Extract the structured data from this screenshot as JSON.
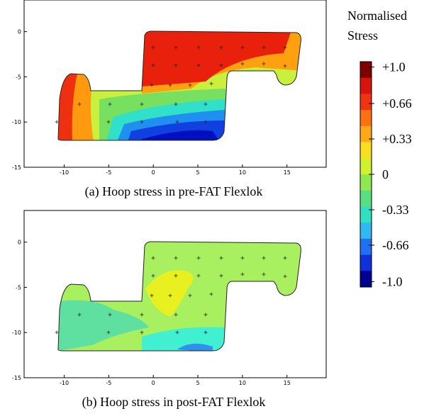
{
  "panels": [
    {
      "caption": "(a)  Hoop stress in pre-FAT Flexlok",
      "xlim": [
        -14.5,
        19.4
      ],
      "ylim": [
        -15,
        3.5
      ],
      "xticks": [
        -10,
        -5,
        0,
        5,
        10,
        15
      ],
      "yticks": [
        0,
        -5,
        -10,
        -15
      ]
    },
    {
      "caption": "(b)  Hoop stress in post-FAT Flexlok",
      "xlim": [
        -14.5,
        19.4
      ],
      "ylim": [
        -15,
        3.5
      ],
      "xticks": [
        -10,
        -5,
        0,
        5,
        10,
        15
      ],
      "yticks": [
        0,
        -5,
        -10,
        -15
      ]
    }
  ],
  "colorbar": {
    "title": [
      "Normalised",
      "Stress"
    ],
    "lim": [
      -1.05,
      1.05
    ],
    "ticks": [
      {
        "value": 1.0,
        "label": "+1.0"
      },
      {
        "value": 0.66,
        "label": "+0.66"
      },
      {
        "value": 0.33,
        "label": "+0.33"
      },
      0,
      {
        "value": -0.33,
        "label": "-0.33"
      },
      {
        "value": -0.66,
        "label": "-0.66"
      },
      {
        "value": -1.0,
        "label": "-1.0"
      }
    ],
    "colors": [
      "#800000",
      "#d8140c",
      "#ee3410",
      "#ff7010",
      "#ffa818",
      "#f8e020",
      "#d0f030",
      "#90e850",
      "#58e080",
      "#30e0c0",
      "#30b8f0",
      "#2070f0",
      "#1030d8",
      "#000090"
    ]
  }
}
